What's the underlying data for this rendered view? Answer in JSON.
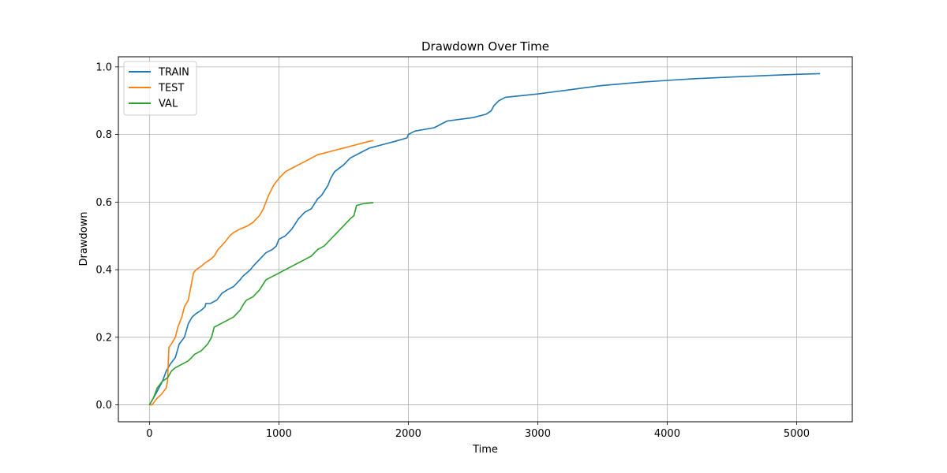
{
  "chart_data": {
    "type": "line",
    "title": "Drawdown Over Time",
    "xlabel": "Time",
    "ylabel": "Drawdown",
    "xlim": [
      -240,
      5430
    ],
    "ylim": [
      -0.05,
      1.03
    ],
    "xticks": [
      0,
      1000,
      2000,
      3000,
      4000,
      5000
    ],
    "xtick_labels": [
      "0",
      "1000",
      "2000",
      "3000",
      "4000",
      "5000"
    ],
    "yticks": [
      0.0,
      0.2,
      0.4,
      0.6,
      0.8,
      1.0
    ],
    "ytick_labels": [
      "0.0",
      "0.2",
      "0.4",
      "0.6",
      "0.8",
      "1.0"
    ],
    "grid": true,
    "legend_position": "top-left",
    "series": [
      {
        "name": "TRAIN",
        "color": "#1f77b4",
        "x": [
          0,
          30,
          60,
          100,
          130,
          160,
          200,
          230,
          270,
          300,
          330,
          360,
          400,
          430,
          435,
          470,
          520,
          560,
          600,
          650,
          700,
          720,
          780,
          800,
          850,
          900,
          950,
          980,
          1000,
          1050,
          1100,
          1150,
          1200,
          1250,
          1300,
          1330,
          1380,
          1400,
          1430,
          1500,
          1550,
          1600,
          1650,
          1700,
          1800,
          1900,
          1990,
          2000,
          2050,
          2200,
          2300,
          2400,
          2500,
          2600,
          2640,
          2660,
          2700,
          2750,
          3000,
          3100,
          3200,
          3300,
          3500,
          3800,
          4000,
          4200,
          4500,
          4800,
          5000,
          5180
        ],
        "y": [
          0.0,
          0.02,
          0.04,
          0.07,
          0.1,
          0.12,
          0.14,
          0.18,
          0.2,
          0.24,
          0.26,
          0.27,
          0.28,
          0.29,
          0.3,
          0.3,
          0.31,
          0.33,
          0.34,
          0.35,
          0.37,
          0.38,
          0.4,
          0.41,
          0.43,
          0.45,
          0.46,
          0.47,
          0.49,
          0.5,
          0.52,
          0.55,
          0.57,
          0.58,
          0.61,
          0.62,
          0.65,
          0.67,
          0.69,
          0.71,
          0.73,
          0.74,
          0.75,
          0.76,
          0.77,
          0.78,
          0.79,
          0.8,
          0.81,
          0.82,
          0.84,
          0.845,
          0.85,
          0.86,
          0.87,
          0.885,
          0.9,
          0.91,
          0.92,
          0.925,
          0.93,
          0.935,
          0.945,
          0.955,
          0.96,
          0.965,
          0.97,
          0.975,
          0.978,
          0.98
        ]
      },
      {
        "name": "TEST",
        "color": "#ff7f0e",
        "x": [
          0,
          20,
          40,
          60,
          90,
          130,
          140,
          150,
          170,
          200,
          220,
          250,
          270,
          300,
          320,
          340,
          360,
          400,
          430,
          470,
          500,
          530,
          580,
          620,
          650,
          700,
          760,
          800,
          850,
          880,
          920,
          960,
          1000,
          1050,
          1100,
          1150,
          1200,
          1250,
          1300,
          1350,
          1400,
          1450,
          1500,
          1550,
          1600,
          1650,
          1700,
          1730
        ],
        "y": [
          0.0,
          0.0,
          0.01,
          0.02,
          0.03,
          0.05,
          0.07,
          0.17,
          0.18,
          0.2,
          0.23,
          0.26,
          0.29,
          0.31,
          0.35,
          0.39,
          0.4,
          0.41,
          0.42,
          0.43,
          0.44,
          0.46,
          0.48,
          0.5,
          0.51,
          0.52,
          0.53,
          0.54,
          0.56,
          0.58,
          0.62,
          0.65,
          0.67,
          0.69,
          0.7,
          0.71,
          0.72,
          0.73,
          0.74,
          0.745,
          0.75,
          0.755,
          0.76,
          0.765,
          0.77,
          0.775,
          0.78,
          0.782
        ]
      },
      {
        "name": "VAL",
        "color": "#2ca02c",
        "x": [
          0,
          30,
          60,
          100,
          140,
          170,
          200,
          250,
          300,
          350,
          400,
          450,
          480,
          500,
          550,
          600,
          650,
          700,
          730,
          750,
          800,
          850,
          900,
          950,
          1000,
          1050,
          1100,
          1150,
          1200,
          1250,
          1300,
          1350,
          1400,
          1450,
          1500,
          1550,
          1580,
          1600,
          1650,
          1700,
          1730
        ],
        "y": [
          0.0,
          0.02,
          0.05,
          0.07,
          0.08,
          0.1,
          0.11,
          0.12,
          0.13,
          0.15,
          0.16,
          0.18,
          0.2,
          0.23,
          0.24,
          0.25,
          0.26,
          0.28,
          0.3,
          0.31,
          0.32,
          0.34,
          0.37,
          0.38,
          0.39,
          0.4,
          0.41,
          0.42,
          0.43,
          0.44,
          0.46,
          0.47,
          0.49,
          0.51,
          0.53,
          0.55,
          0.56,
          0.59,
          0.595,
          0.597,
          0.598
        ]
      }
    ]
  }
}
